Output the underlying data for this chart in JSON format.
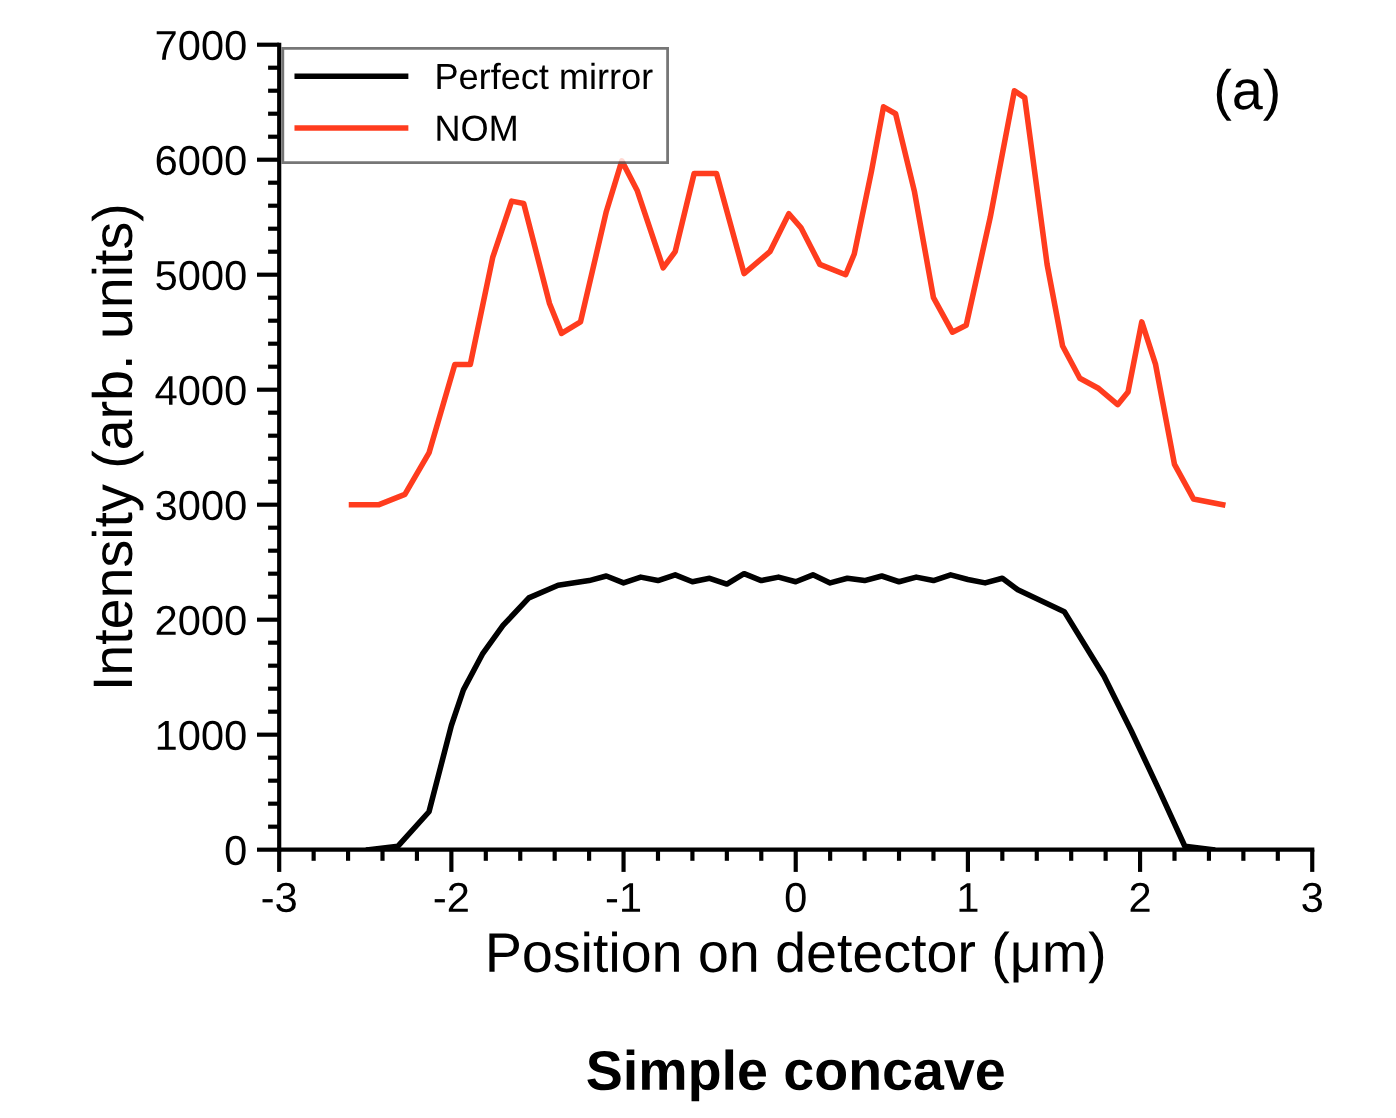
{
  "chart_data": {
    "type": "line",
    "xlabel": "Position on detector (μm)",
    "ylabel": "Intensity (arb. units)",
    "annotations": [
      "(a)",
      "Simple concave"
    ],
    "xlim": [
      -3,
      3
    ],
    "xticks": [
      -3,
      -2,
      -1,
      0,
      1,
      2,
      3
    ],
    "ylim": [
      0,
      7000
    ],
    "yticks": [
      0,
      1000,
      2000,
      3000,
      4000,
      5000,
      6000,
      7000
    ],
    "grid": false,
    "legend": "top left",
    "marker": "none",
    "line_style": "solid",
    "series": [
      {
        "name": "Perfect mirror",
        "color": "#000000",
        "x": [
          -2.48,
          -2.31,
          -2.13,
          -2.0,
          -1.93,
          -1.82,
          -1.7,
          -1.55,
          -1.38,
          -1.2,
          -1.1,
          -1.0,
          -0.9,
          -0.8,
          -0.7,
          -0.6,
          -0.5,
          -0.4,
          -0.3,
          -0.2,
          -0.1,
          0.0,
          0.1,
          0.2,
          0.3,
          0.4,
          0.5,
          0.6,
          0.7,
          0.8,
          0.9,
          1.0,
          1.1,
          1.2,
          1.29,
          1.56,
          1.79,
          1.95,
          2.11,
          2.26,
          2.42
        ],
        "values": [
          0,
          30,
          330,
          1080,
          1390,
          1700,
          1950,
          2190,
          2300,
          2340,
          2380,
          2320,
          2370,
          2340,
          2390,
          2330,
          2360,
          2310,
          2400,
          2340,
          2370,
          2330,
          2390,
          2320,
          2360,
          2340,
          2380,
          2330,
          2370,
          2340,
          2390,
          2350,
          2320,
          2360,
          2260,
          2070,
          1510,
          1030,
          520,
          30,
          0
        ]
      },
      {
        "name": "NOM",
        "color": "#ff3c1e",
        "x": [
          -2.58,
          -2.42,
          -2.27,
          -2.13,
          -1.98,
          -1.89,
          -1.76,
          -1.65,
          -1.58,
          -1.43,
          -1.36,
          -1.25,
          -1.1,
          -1.01,
          -0.92,
          -0.77,
          -0.7,
          -0.59,
          -0.46,
          -0.3,
          -0.15,
          -0.04,
          0.03,
          0.14,
          0.29,
          0.34,
          0.44,
          0.51,
          0.58,
          0.69,
          0.8,
          0.91,
          0.99,
          1.13,
          1.27,
          1.33,
          1.46,
          1.55,
          1.65,
          1.76,
          1.87,
          1.93,
          2.01,
          2.09,
          2.2,
          2.31,
          2.48
        ],
        "values": [
          3000,
          3000,
          3090,
          3450,
          4220,
          4220,
          5150,
          5640,
          5620,
          4750,
          4490,
          4590,
          5550,
          5990,
          5730,
          5060,
          5200,
          5880,
          5880,
          5010,
          5200,
          5530,
          5410,
          5090,
          5000,
          5180,
          5900,
          6460,
          6400,
          5720,
          4800,
          4500,
          4560,
          5500,
          6600,
          6540,
          5090,
          4380,
          4100,
          4010,
          3870,
          3980,
          4590,
          4220,
          3350,
          3050,
          3000
        ]
      }
    ]
  }
}
